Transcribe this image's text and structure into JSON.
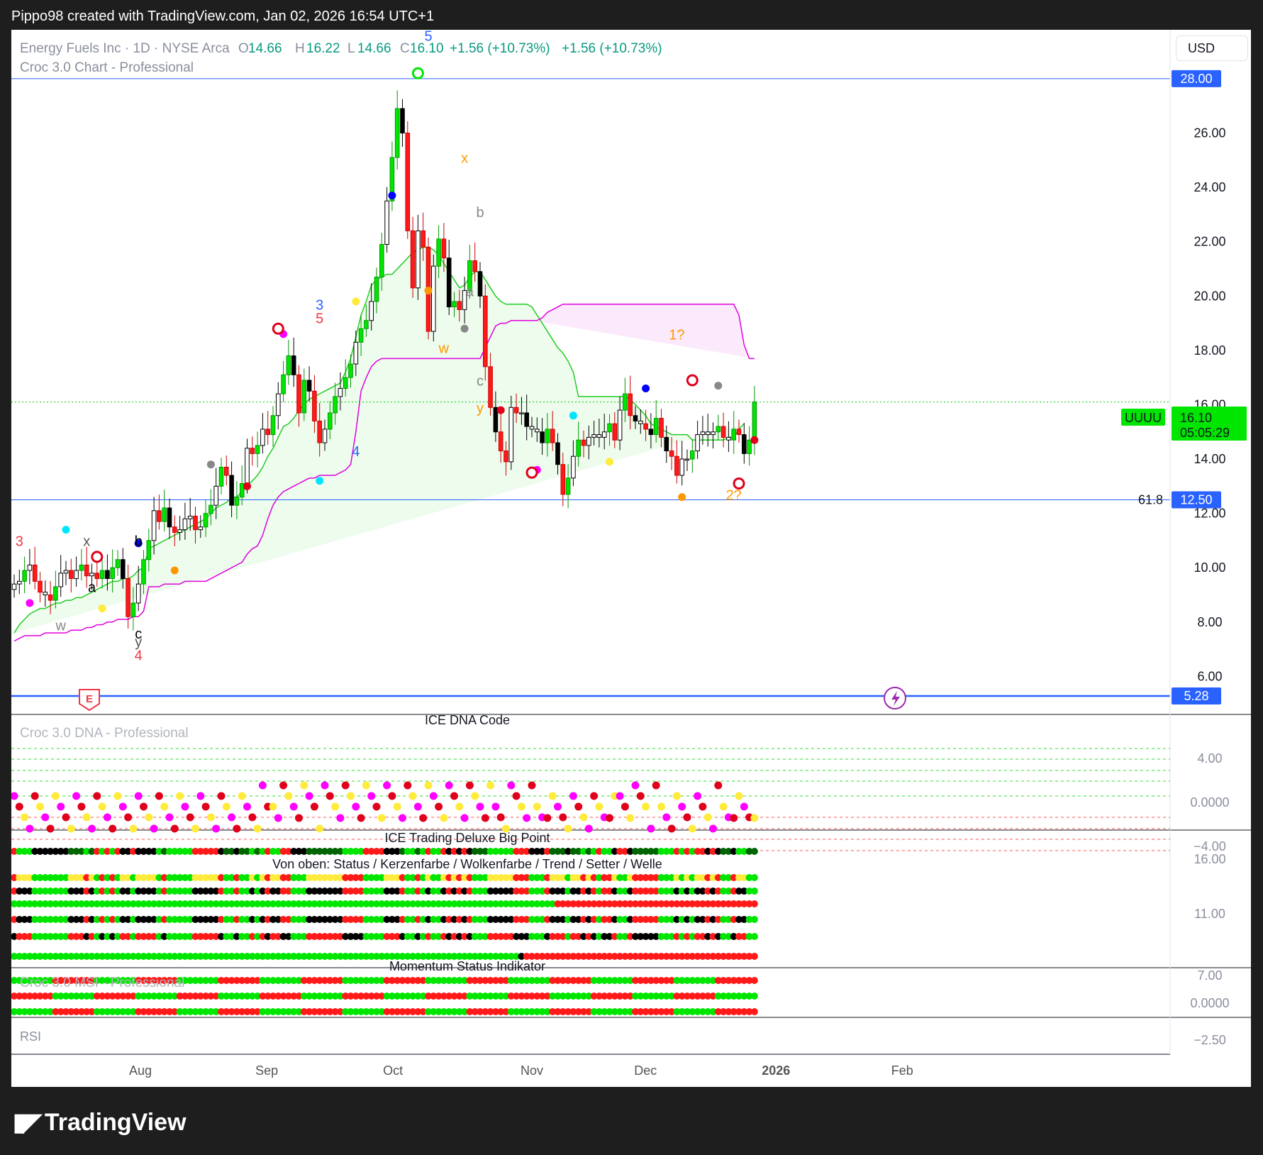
{
  "header": {
    "created_by": "Pippo98 created with TradingView.com, Jan 02, 2026 16:54 UTC+1",
    "symbol_line": "Energy Fuels Inc · 1D · NYSE Arca",
    "o_label": "O",
    "o_value": "14.66",
    "h_label": "H",
    "h_value": "16.22",
    "l_label": "L",
    "l_value": "14.66",
    "c_label": "C",
    "c_value": "16.10",
    "change": "+1.56 (+10.73%)",
    "change2": "+1.56 (+10.73%)",
    "indicator_name": "Croc 3.0 Chart - Professional",
    "currency": "USD"
  },
  "brand": {
    "name": "TradingView"
  },
  "colors": {
    "up": "#00e600",
    "down": "#ff1a1a",
    "doji": "#000000",
    "cloud_line": "#22cc22",
    "band_line": "#e000e0",
    "pivot_line": "#2962ff",
    "price_tag": "#00e600",
    "text_up": "#089981"
  },
  "chart_data": [
    {
      "type": "candlestick",
      "title": "Energy Fuels Inc · 1D · NYSE Arca",
      "y_ticks": [
        "26.00",
        "24.00",
        "22.00",
        "20.00",
        "18.00",
        "16.00",
        "14.00",
        "12.00",
        "10.00",
        "8.00",
        "6.00"
      ],
      "ylim": [
        4.6,
        29.8
      ],
      "x_ticks": [
        {
          "label": "Aug",
          "x": 30
        },
        {
          "label": "Sep",
          "x": 60
        },
        {
          "label": "Oct",
          "x": 90
        },
        {
          "label": "Nov",
          "x": 123
        },
        {
          "label": "Dec",
          "x": 150
        },
        {
          "label": "2026",
          "x": 181
        },
        {
          "label": "Feb",
          "x": 211
        }
      ],
      "price_levels": [
        {
          "value": 28.0,
          "label": "28.00"
        },
        {
          "value": 12.5,
          "label": "12.50",
          "fib": "61.8"
        },
        {
          "value": 5.28,
          "label": "5.28"
        }
      ],
      "last_price": {
        "symbol": "UUUU",
        "value": 16.1,
        "label": "16.10",
        "countdown": "05:05:29"
      },
      "close": [
        9.4,
        9.5,
        9.9,
        10.1,
        9.5,
        9.1,
        9.0,
        8.8,
        9.3,
        9.8,
        9.9,
        9.6,
        9.9,
        10.1,
        9.7,
        9.8,
        9.6,
        9.9,
        9.6,
        10.0,
        10.3,
        9.6,
        8.2,
        8.7,
        9.4,
        10.3,
        11.0,
        12.1,
        11.7,
        12.2,
        11.5,
        11.3,
        11.4,
        11.8,
        11.9,
        11.4,
        11.5,
        12.0,
        12.3,
        13.0,
        13.7,
        13.4,
        12.3,
        12.6,
        13.1,
        14.4,
        14.2,
        14.5,
        15.1,
        14.9,
        15.6,
        16.4,
        17.1,
        17.8,
        17.1,
        15.7,
        16.9,
        16.5,
        15.4,
        14.6,
        15.1,
        15.7,
        16.3,
        16.6,
        17.0,
        17.5,
        18.3,
        18.8,
        19.1,
        19.8,
        20.7,
        21.9,
        23.5,
        25.1,
        26.9,
        26.0,
        22.4,
        20.3,
        22.4,
        21.8,
        18.7,
        21.1,
        22.1,
        21.4,
        19.6,
        19.8,
        19.5,
        20.2,
        21.3,
        20.9,
        20.0,
        17.4,
        15.9,
        15.0,
        14.3,
        13.9,
        15.9,
        15.7,
        15.7,
        15.2,
        15.1,
        15.0,
        14.6,
        15.1,
        14.6,
        13.8,
        12.7,
        13.3,
        14.1,
        14.7,
        14.5,
        14.8,
        14.9,
        14.8,
        15.0,
        15.3,
        14.7,
        15.8,
        16.4,
        15.6,
        15.4,
        15.3,
        15.1,
        14.9,
        15.5,
        14.8,
        14.3,
        14.1,
        13.4,
        14.0,
        14.0,
        14.3,
        14.9,
        15.0,
        14.9,
        15.0,
        15.2,
        14.8,
        14.7,
        15.1,
        14.9,
        14.2,
        14.7,
        16.1
      ],
      "band_upper": [
        7.6,
        7.9,
        8.1,
        8.3,
        8.4,
        8.5,
        8.5,
        8.6,
        8.7,
        8.7,
        8.8,
        8.8,
        8.9,
        8.9,
        9.0,
        9.1,
        9.2,
        9.3,
        9.4,
        9.5,
        9.5,
        9.6,
        9.6,
        9.7,
        9.9,
        10.0,
        10.7,
        10.8,
        10.9,
        11.0,
        11.1,
        11.2,
        11.3,
        11.4,
        11.5,
        11.6,
        11.7,
        11.8,
        12.0,
        12.2,
        12.3,
        12.4,
        12.6,
        12.6,
        12.8,
        13.0,
        13.2,
        13.4,
        13.7,
        14.1,
        14.4,
        14.8,
        15.2,
        15.3,
        15.5,
        15.8,
        16.0,
        16.2,
        16.3,
        16.4,
        16.5,
        16.6,
        16.7,
        16.8,
        17.2,
        17.7,
        18.5,
        19.3,
        19.8,
        20.4,
        20.6,
        20.7,
        20.8,
        20.8,
        21.0,
        21.2,
        21.4,
        21.6,
        21.7,
        21.8,
        21.8,
        21.7,
        21.5,
        21.2,
        20.9,
        20.6,
        20.3,
        20.4,
        20.7,
        20.9,
        20.9,
        20.6,
        20.3,
        20.0,
        19.8,
        19.7,
        19.7,
        19.7,
        19.7,
        19.7,
        19.6,
        19.3,
        19.0,
        18.7,
        18.4,
        18.1,
        17.9,
        17.6,
        17.2,
        16.3,
        16.3,
        16.3,
        16.3,
        16.3,
        16.3,
        16.3,
        16.3,
        16.3,
        16.3,
        16.2,
        16.0,
        15.8,
        15.6,
        15.3,
        15.2,
        15.1,
        15.0,
        14.9,
        14.9,
        14.9,
        14.9,
        14.7,
        14.7,
        14.7,
        14.7,
        14.7,
        14.7,
        14.7,
        14.8,
        14.8,
        15.1,
        15.3
      ],
      "band_lower": [
        7.3,
        7.4,
        7.5,
        7.5,
        7.5,
        7.5,
        7.6,
        7.6,
        7.6,
        7.6,
        7.6,
        7.7,
        7.7,
        7.7,
        7.8,
        7.8,
        7.9,
        7.9,
        8.0,
        8.0,
        8.1,
        8.1,
        8.1,
        8.2,
        8.2,
        8.4,
        9.3,
        9.3,
        9.3,
        9.4,
        9.4,
        9.4,
        9.4,
        9.5,
        9.5,
        9.5,
        9.5,
        9.5,
        9.6,
        9.7,
        9.8,
        9.9,
        10.0,
        10.1,
        10.2,
        10.5,
        10.7,
        10.8,
        11.2,
        11.8,
        12.3,
        12.6,
        12.8,
        12.9,
        13.0,
        13.1,
        13.2,
        13.3,
        13.3,
        13.4,
        13.4,
        13.4,
        13.4,
        13.5,
        13.6,
        13.8,
        15.0,
        16.5,
        17.0,
        17.4,
        17.6,
        17.7,
        17.7,
        17.7,
        17.7,
        17.7,
        17.7,
        17.7,
        17.7,
        17.7,
        17.7,
        17.7,
        17.7,
        17.7,
        17.7,
        17.7,
        17.7,
        17.7,
        17.7,
        17.7,
        17.7,
        18.1,
        18.5,
        18.9,
        19.0,
        19.0,
        19.1,
        19.1,
        19.1,
        19.1,
        19.1,
        19.1,
        19.2,
        19.4,
        19.5,
        19.6,
        19.7,
        19.7,
        19.7,
        19.7,
        19.7,
        19.7,
        19.7,
        19.7,
        19.7,
        19.7,
        19.7,
        19.7,
        19.7,
        19.7,
        19.7,
        19.7,
        19.7,
        19.7,
        19.7,
        19.7,
        19.7,
        19.7,
        19.7,
        19.7,
        19.7,
        19.7,
        19.7,
        19.7,
        19.7,
        19.7,
        19.7,
        19.7,
        19.7,
        19.7,
        19.3,
        18.2,
        17.7,
        17.7
      ]
    },
    {
      "type": "table",
      "title": "ICE DNA Code",
      "indicator_name": "Croc 3.0 DNA - Professional",
      "y_ticks": [
        "4.00",
        "0.0000",
        "-4.00"
      ]
    },
    {
      "type": "table",
      "title": "ICE Trading Deluxe Big Point",
      "subtitle": "Von oben: Status / Kerzenfarbe / Wolkenfarbe / Trend / Setter / Welle",
      "y_ticks": [
        "16.00",
        "11.00",
        "7.00"
      ]
    },
    {
      "type": "table",
      "title": "Momentum Status Indikator",
      "indicator_name": "Croc 3.0 MSI - Professional",
      "y_ticks": [
        "0.0000",
        "-2.50"
      ]
    },
    {
      "type": "line",
      "indicator_name": "RSI"
    }
  ],
  "annotations": [
    {
      "text": "3",
      "color": "#f23645",
      "x": 1,
      "y": 10.8
    },
    {
      "text": "x",
      "color": "#555555",
      "x": 14,
      "y": 10.8
    },
    {
      "text": "b",
      "color": "#000000",
      "x": 24,
      "y": 10.8
    },
    {
      "text": "a",
      "color": "#000000",
      "x": 15,
      "y": 9.1
    },
    {
      "text": "w",
      "color": "#888888",
      "x": 9,
      "y": 7.7
    },
    {
      "text": "c",
      "color": "#000000",
      "x": 24,
      "y": 7.4
    },
    {
      "text": "y",
      "color": "#555555",
      "x": 24,
      "y": 7.1
    },
    {
      "text": "4",
      "color": "#f23645",
      "x": 24,
      "y": 6.6
    },
    {
      "text": "3",
      "color": "#2962ff",
      "x": 59,
      "y": 19.5
    },
    {
      "text": "5",
      "color": "#f23645",
      "x": 59,
      "y": 19.0
    },
    {
      "text": "4",
      "color": "#2962ff",
      "x": 66,
      "y": 14.1
    },
    {
      "text": "5",
      "color": "#2962ff",
      "x": 80,
      "y": 29.4
    },
    {
      "text": "x",
      "color": "#ff9800",
      "x": 87,
      "y": 24.9
    },
    {
      "text": "b",
      "color": "#888888",
      "x": 90,
      "y": 22.9
    },
    {
      "text": "a",
      "color": "#888888",
      "x": 88,
      "y": 20.0
    },
    {
      "text": "w",
      "color": "#ff9800",
      "x": 83,
      "y": 17.9
    },
    {
      "text": "c",
      "color": "#888888",
      "x": 90,
      "y": 16.7
    },
    {
      "text": "y",
      "color": "#ff9800",
      "x": 90,
      "y": 15.7
    },
    {
      "text": "1?",
      "color": "#ff9800",
      "x": 128,
      "y": 18.4
    },
    {
      "text": "2?",
      "color": "#ff9800",
      "x": 139,
      "y": 12.5
    }
  ]
}
